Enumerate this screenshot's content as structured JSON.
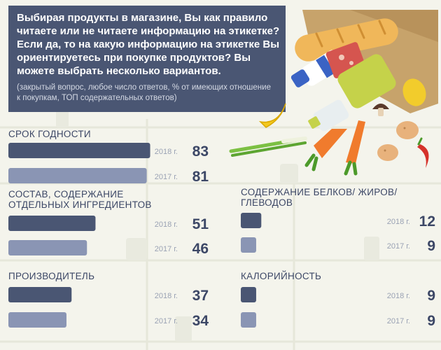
{
  "header": {
    "question": "Выбирая продукты в магазине, Вы как правило читаете или не читаете информацию на этикетке? Если да, то на какую информацию на этикетке Вы ориентируетесь при покупке продуктов? Вы можете выбрать несколько вариантов.",
    "note": "(закрытый вопрос, любое число ответов, % от имеющих отношение к покупкам, ТОП содержательных ответов)"
  },
  "colors": {
    "header_bg": "#4a5673",
    "bar_2018": "#4a5673",
    "bar_2017": "#8a95b4",
    "text": "#3c4766",
    "year_text": "#9aa2b4"
  },
  "chart_data": {
    "type": "bar",
    "orientation": "horizontal",
    "series": [
      {
        "name": "2018 г.",
        "values": [
          83,
          51,
          37,
          12,
          9
        ]
      },
      {
        "name": "2017 г.",
        "values": [
          81,
          46,
          34,
          9,
          9
        ]
      }
    ],
    "categories": [
      [
        "СРОК ГОДНОСТИ"
      ],
      [
        "СОСТАВ, СОДЕРЖАНИЕ",
        "ОТДЕЛЬНЫХ ИНГРЕДИЕНТОВ"
      ],
      [
        "ПРОИЗВОДИТЕЛЬ"
      ],
      [
        "СОДЕРЖАНИЕ БЕЛКОВ/ ЖИРОВ/",
        "ГЛЕВОДОВ"
      ],
      [
        "КАЛОРИЙНОСТЬ"
      ]
    ]
  }
}
